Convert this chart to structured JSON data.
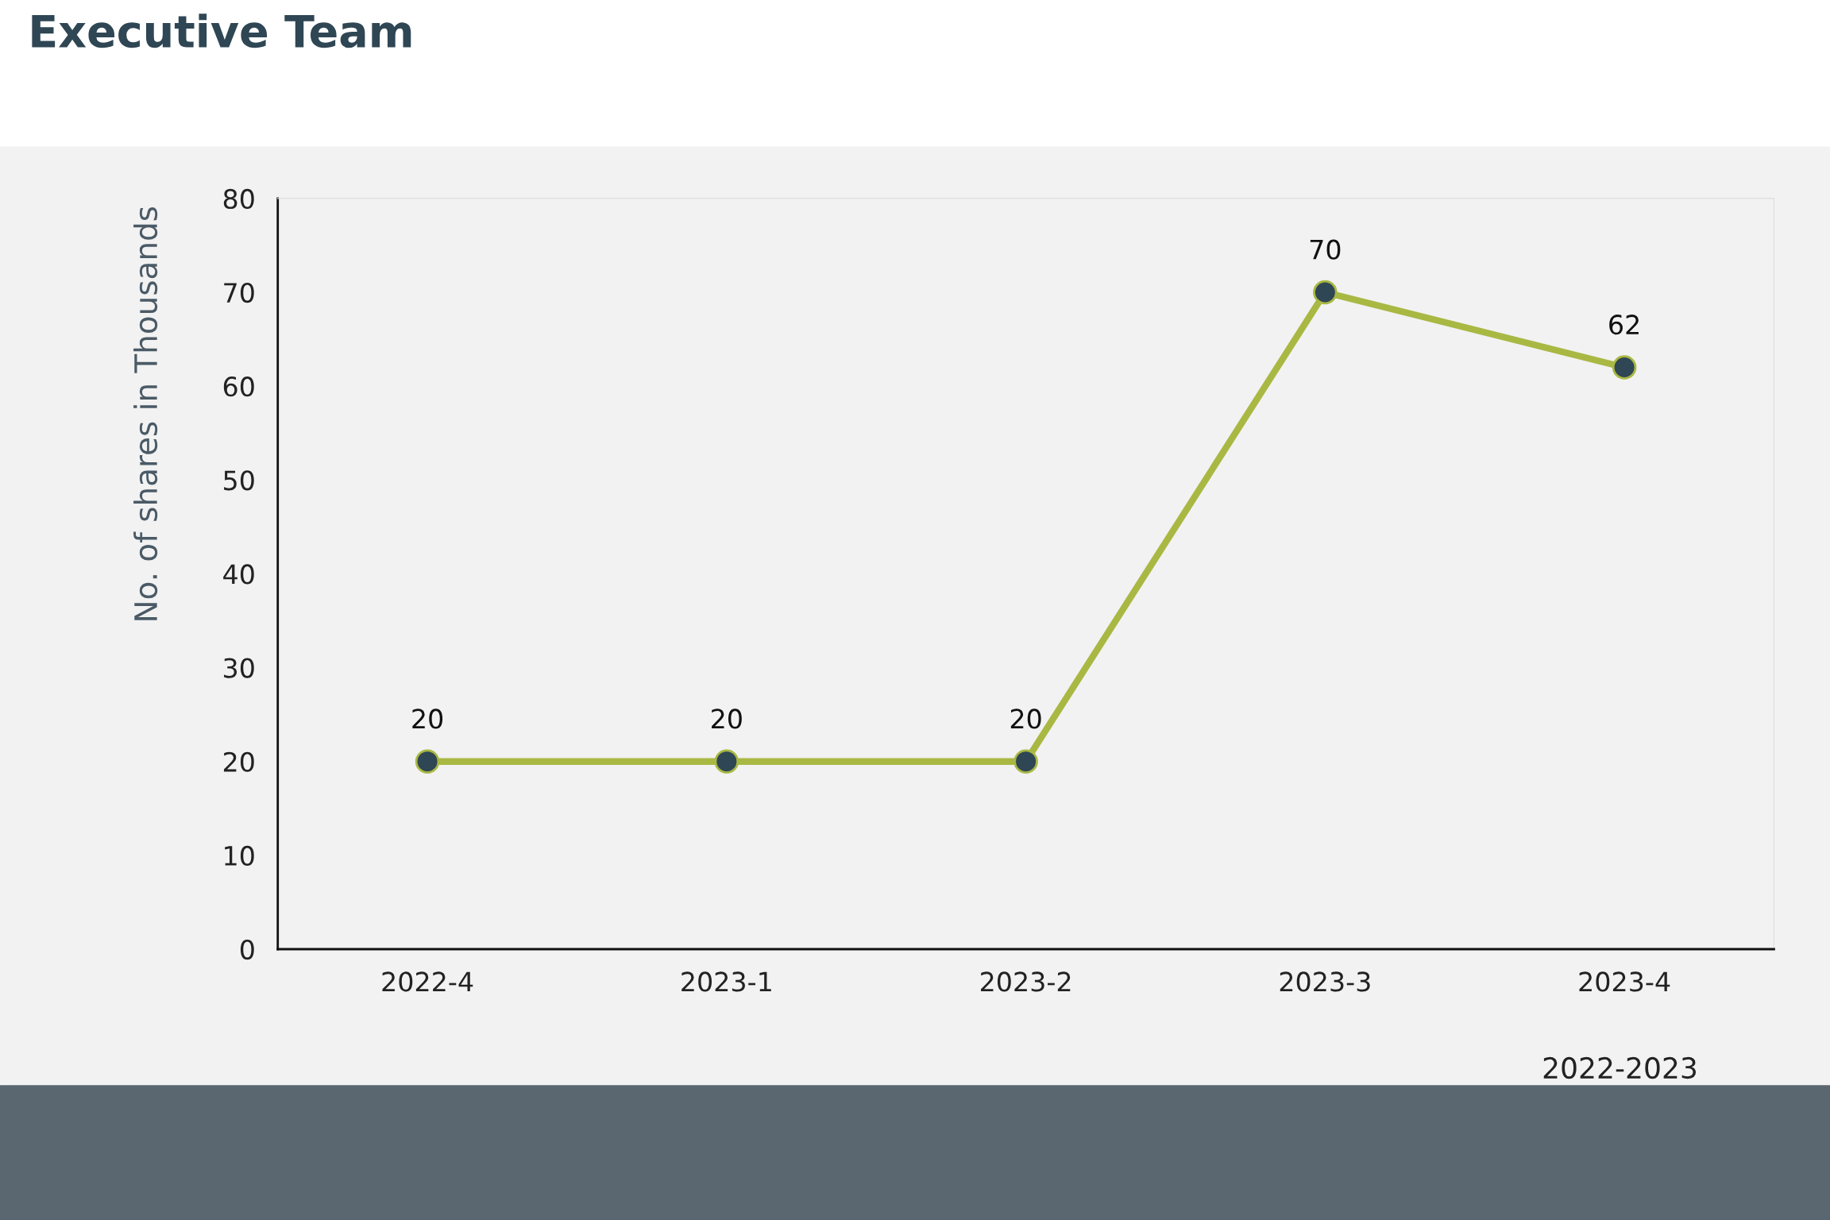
{
  "chart_data": {
    "type": "line",
    "title": "Executive Team",
    "xlabel": "2022-2023",
    "ylabel": "No. of shares in Thousands",
    "categories": [
      "2022-4",
      "2023-1",
      "2023-2",
      "2023-3",
      "2023-4"
    ],
    "series": [
      {
        "color": "#a9b843",
        "values": [
          20,
          20,
          20,
          70,
          62
        ]
      }
    ],
    "ylim": [
      0,
      80
    ],
    "yticks": [
      0,
      10,
      20,
      30,
      40,
      50,
      60,
      70,
      80
    ],
    "data_labels": true,
    "grid": false,
    "legend": false,
    "marker": "circle",
    "line_style": "solid"
  }
}
